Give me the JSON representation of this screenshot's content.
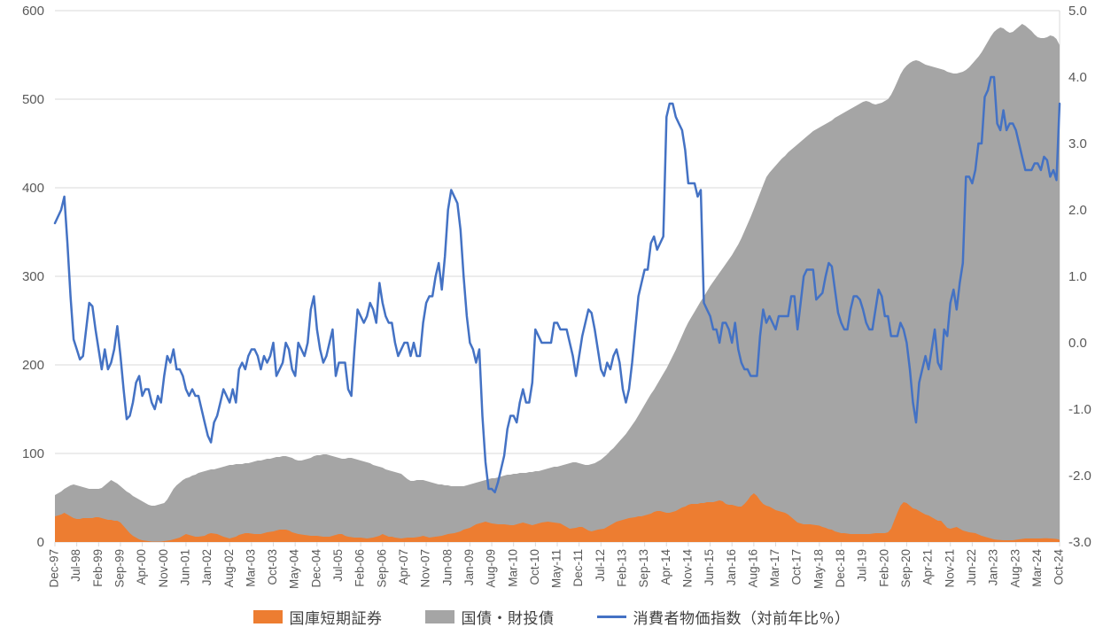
{
  "chart_data": {
    "type": "combo-area-line",
    "title": "",
    "x_tick_labels": [
      "Dec-97",
      "Jul-98",
      "Feb-99",
      "Sep-99",
      "Apr-00",
      "Nov-00",
      "Jun-01",
      "Jan-02",
      "Aug-02",
      "Mar-03",
      "Oct-03",
      "May-04",
      "Dec-04",
      "Jul-05",
      "Feb-06",
      "Sep-06",
      "Apr-07",
      "Nov-07",
      "Jun-08",
      "Jan-09",
      "Aug-09",
      "Mar-10",
      "Oct-10",
      "May-11",
      "Dec-11",
      "Jul-12",
      "Feb-13",
      "Sep-13",
      "Apr-14",
      "Nov-14",
      "Jun-15",
      "Jan-16",
      "Aug-16",
      "Mar-17",
      "Oct-17",
      "May-18",
      "Dec-18",
      "Jul-19",
      "Feb-20",
      "Sep-20",
      "Apr-21",
      "Nov-21",
      "Jun-22",
      "Jan-23",
      "Aug-23",
      "Mar-24",
      "Oct-24"
    ],
    "x_tick_interval_months": 7,
    "x_monthly_point_count": 323,
    "left_axis": {
      "min": 0,
      "max": 600,
      "ticks": [
        "0",
        "100",
        "200",
        "300",
        "400",
        "500",
        "600"
      ]
    },
    "right_axis": {
      "min": -3.0,
      "max": 5.0,
      "ticks": [
        "-3.0",
        "-2.0",
        "-1.0",
        "0.0",
        "1.0",
        "2.0",
        "3.0",
        "4.0",
        "5.0"
      ]
    },
    "grid": {
      "show": true,
      "color": "#d9d9d9",
      "axis_text_color": "#595959"
    },
    "legend_position": "bottom",
    "series": [
      {
        "name": "国債・財投債",
        "type": "area",
        "axis": "left",
        "color": "#a5a5a5",
        "values": [
          53,
          55,
          57,
          60,
          62,
          64,
          65,
          64,
          63,
          62,
          61,
          60,
          60,
          60,
          60,
          61,
          64,
          67,
          70,
          68,
          66,
          63,
          60,
          57,
          55,
          52,
          50,
          48,
          46,
          44,
          42,
          41,
          41,
          42,
          43,
          44,
          48,
          54,
          60,
          64,
          67,
          70,
          72,
          73,
          75,
          76,
          78,
          79,
          80,
          81,
          82,
          82,
          83,
          84,
          85,
          86,
          87,
          87,
          88,
          88,
          88,
          89,
          89,
          90,
          91,
          92,
          92,
          93,
          94,
          94,
          95,
          96,
          96,
          97,
          97,
          96,
          95,
          93,
          92,
          92,
          93,
          94,
          95,
          97,
          98,
          98,
          99,
          99,
          98,
          97,
          96,
          95,
          94,
          94,
          95,
          95,
          94,
          93,
          92,
          91,
          90,
          89,
          87,
          86,
          85,
          84,
          82,
          81,
          80,
          79,
          78,
          77,
          74,
          71,
          69,
          69,
          70,
          70,
          70,
          69,
          68,
          67,
          66,
          65,
          65,
          64,
          64,
          63,
          63,
          63,
          63,
          63,
          64,
          65,
          66,
          67,
          68,
          69,
          70,
          71,
          72,
          72,
          73,
          74,
          75,
          76,
          76,
          77,
          77,
          78,
          78,
          78,
          79,
          79,
          80,
          80,
          81,
          82,
          83,
          84,
          85,
          85,
          86,
          87,
          88,
          89,
          90,
          90,
          89,
          88,
          87,
          87,
          88,
          89,
          91,
          93,
          96,
          99,
          103,
          106,
          110,
          114,
          118,
          122,
          127,
          132,
          137,
          143,
          149,
          155,
          161,
          167,
          172,
          178,
          184,
          190,
          196,
          203,
          210,
          217,
          225,
          233,
          241,
          248,
          254,
          260,
          266,
          272,
          277,
          283,
          289,
          294,
          299,
          304,
          309,
          314,
          319,
          324,
          330,
          336,
          343,
          351,
          359,
          367,
          376,
          385,
          394,
          403,
          412,
          417,
          421,
          425,
          429,
          433,
          436,
          440,
          443,
          446,
          449,
          452,
          455,
          458,
          461,
          464,
          466,
          468,
          470,
          472,
          474,
          476,
          479,
          481,
          483,
          485,
          487,
          489,
          491,
          493,
          495,
          497,
          498,
          497,
          495,
          494,
          495,
          496,
          498,
          500,
          505,
          512,
          520,
          528,
          534,
          538,
          541,
          543,
          544,
          543,
          541,
          539,
          538,
          537,
          536,
          535,
          534,
          533,
          531,
          530,
          529,
          529,
          530,
          531,
          533,
          536,
          540,
          544,
          548,
          553,
          559,
          565,
          571,
          576,
          579,
          581,
          580,
          577,
          575,
          576,
          579,
          582,
          585,
          583,
          580,
          577,
          573,
          570,
          569,
          569,
          570,
          572,
          571,
          568,
          561
        ]
      },
      {
        "name": "国庫短期証券",
        "type": "area",
        "axis": "left",
        "color": "#ed7d31",
        "values": [
          29,
          30,
          31,
          33,
          31,
          29,
          27,
          26,
          26,
          27,
          27,
          27,
          27,
          28,
          28,
          27,
          26,
          25,
          25,
          24,
          24,
          22,
          18,
          14,
          10,
          7,
          5,
          3,
          2,
          1.5,
          1,
          0.5,
          0.5,
          0.5,
          0.5,
          1,
          1.5,
          2,
          3,
          4,
          5,
          7,
          9,
          8,
          7,
          6,
          6,
          6.5,
          7,
          9,
          10,
          9.5,
          9,
          7.5,
          6,
          5,
          4,
          5,
          6,
          8,
          9,
          10,
          10,
          9.5,
          9,
          9,
          9,
          10,
          11,
          11.5,
          12,
          13,
          14,
          14,
          14,
          13,
          11,
          10,
          9,
          8.5,
          8,
          7.5,
          7,
          7,
          7,
          6.5,
          6,
          6,
          6,
          7,
          8,
          9,
          9,
          7,
          6,
          5.5,
          5,
          5,
          5,
          4.5,
          4,
          4.5,
          5,
          6,
          7,
          9,
          7.5,
          6,
          6,
          5,
          4.5,
          4,
          4.5,
          5,
          5,
          5,
          5.5,
          6,
          7,
          6,
          5,
          5.5,
          6,
          6.5,
          7,
          8,
          9,
          9.5,
          10,
          11,
          12,
          14,
          15,
          16,
          18,
          20,
          21,
          22,
          23,
          22,
          21,
          20.5,
          20,
          20,
          20,
          19.5,
          19,
          19,
          20,
          21,
          22,
          21,
          20,
          19,
          20,
          21,
          22,
          22.5,
          23,
          22.5,
          22,
          21.5,
          21,
          19,
          17,
          15,
          15.5,
          16,
          17,
          17,
          15,
          13,
          12,
          13,
          14,
          14.5,
          15,
          17,
          19,
          21,
          23,
          24,
          25,
          26,
          27,
          27.5,
          28,
          29,
          29,
          30,
          31,
          32,
          34,
          35,
          35,
          34,
          33,
          33,
          34,
          35,
          37,
          39,
          40,
          42,
          43,
          43,
          43,
          44,
          44,
          45,
          45,
          45,
          46,
          47,
          46,
          43,
          42,
          42,
          41,
          40,
          40,
          43,
          47,
          52,
          55,
          52,
          47,
          43,
          41,
          40,
          38,
          36,
          35,
          34,
          33,
          31,
          28,
          25,
          22,
          21,
          20,
          20,
          20,
          19.5,
          19,
          18.5,
          17,
          16,
          14.5,
          14,
          12,
          11,
          10,
          10,
          9.5,
          9,
          9,
          9,
          9,
          9,
          9,
          9,
          9.5,
          10,
          10,
          10,
          10,
          11,
          15,
          24,
          33,
          41,
          45,
          44,
          41,
          38,
          37,
          35,
          33,
          31,
          30,
          28,
          26,
          24,
          24,
          20,
          16,
          15,
          16,
          17,
          15,
          13,
          12,
          11,
          10.5,
          10,
          8.5,
          7,
          6,
          5,
          4,
          3,
          2.5,
          2.2,
          2,
          2,
          2,
          2,
          2.5,
          3,
          3.5,
          4,
          4,
          4,
          4,
          4,
          4,
          4.2,
          4.2,
          4,
          3.8,
          3.5,
          2.5
        ]
      },
      {
        "name": "消費者物価指数（対前年比％）",
        "type": "line",
        "axis": "right",
        "color": "#4472c4",
        "values": [
          1.8,
          1.9,
          2.0,
          2.2,
          1.5,
          0.7,
          0.05,
          -0.1,
          -0.25,
          -0.2,
          0.2,
          0.6,
          0.55,
          0.2,
          -0.1,
          -0.4,
          -0.1,
          -0.4,
          -0.3,
          -0.1,
          0.25,
          -0.2,
          -0.7,
          -1.15,
          -1.1,
          -0.9,
          -0.6,
          -0.5,
          -0.8,
          -0.7,
          -0.7,
          -0.9,
          -1.0,
          -0.8,
          -0.9,
          -0.5,
          -0.2,
          -0.3,
          -0.1,
          -0.4,
          -0.4,
          -0.5,
          -0.7,
          -0.8,
          -0.7,
          -0.8,
          -0.8,
          -1.0,
          -1.2,
          -1.4,
          -1.5,
          -1.2,
          -1.1,
          -0.9,
          -0.7,
          -0.8,
          -0.9,
          -0.7,
          -0.9,
          -0.4,
          -0.3,
          -0.4,
          -0.2,
          -0.1,
          -0.1,
          -0.2,
          -0.4,
          -0.2,
          -0.3,
          -0.2,
          0.0,
          -0.5,
          -0.4,
          -0.3,
          0.0,
          -0.1,
          -0.4,
          -0.5,
          0.0,
          -0.1,
          -0.2,
          0.0,
          0.5,
          0.7,
          0.2,
          -0.1,
          -0.3,
          -0.2,
          0.0,
          0.2,
          -0.5,
          -0.3,
          -0.3,
          -0.3,
          -0.7,
          -0.8,
          -0.1,
          0.5,
          0.4,
          0.3,
          0.4,
          0.6,
          0.5,
          0.3,
          0.9,
          0.6,
          0.4,
          0.3,
          0.3,
          0.0,
          -0.2,
          -0.1,
          0.0,
          0.0,
          -0.2,
          0.0,
          -0.2,
          -0.2,
          0.3,
          0.6,
          0.7,
          0.7,
          1.0,
          1.2,
          0.8,
          1.3,
          2.0,
          2.3,
          2.2,
          2.1,
          1.7,
          1.0,
          0.4,
          0.0,
          -0.1,
          -0.3,
          -0.1,
          -1.1,
          -1.8,
          -2.2,
          -2.2,
          -2.25,
          -2.1,
          -1.9,
          -1.7,
          -1.3,
          -1.1,
          -1.1,
          -1.2,
          -0.9,
          -0.7,
          -0.9,
          -0.9,
          -0.6,
          0.2,
          0.1,
          0.0,
          0.0,
          0.0,
          0.0,
          0.3,
          0.3,
          0.2,
          0.2,
          0.2,
          0.0,
          -0.2,
          -0.5,
          -0.2,
          0.1,
          0.3,
          0.5,
          0.45,
          0.2,
          -0.1,
          -0.4,
          -0.5,
          -0.3,
          -0.4,
          -0.2,
          -0.1,
          -0.3,
          -0.7,
          -0.9,
          -0.7,
          -0.3,
          0.2,
          0.7,
          0.9,
          1.1,
          1.1,
          1.5,
          1.6,
          1.4,
          1.5,
          1.6,
          3.4,
          3.6,
          3.6,
          3.4,
          3.3,
          3.2,
          2.9,
          2.4,
          2.4,
          2.4,
          2.2,
          2.3,
          0.6,
          0.5,
          0.4,
          0.2,
          0.2,
          0.0,
          0.3,
          0.3,
          0.2,
          0.0,
          0.3,
          -0.1,
          -0.3,
          -0.4,
          -0.4,
          -0.5,
          -0.5,
          -0.5,
          0.1,
          0.5,
          0.3,
          0.4,
          0.3,
          0.2,
          0.4,
          0.4,
          0.4,
          0.4,
          0.7,
          0.7,
          0.2,
          0.6,
          1.0,
          1.1,
          1.1,
          1.1,
          0.65,
          0.7,
          0.75,
          1.0,
          1.2,
          1.15,
          0.8,
          0.45,
          0.3,
          0.2,
          0.2,
          0.5,
          0.7,
          0.7,
          0.65,
          0.5,
          0.3,
          0.2,
          0.2,
          0.5,
          0.8,
          0.7,
          0.4,
          0.4,
          0.1,
          0.1,
          0.1,
          0.3,
          0.2,
          0.0,
          -0.4,
          -0.9,
          -1.2,
          -0.6,
          -0.4,
          -0.2,
          -0.4,
          -0.1,
          0.2,
          -0.3,
          -0.4,
          0.2,
          0.1,
          0.6,
          0.8,
          0.5,
          0.9,
          1.2,
          2.5,
          2.5,
          2.4,
          2.6,
          3.0,
          3.0,
          3.7,
          3.8,
          4.0,
          4.0,
          3.3,
          3.2,
          3.5,
          3.2,
          3.3,
          3.3,
          3.2,
          3.0,
          2.8,
          2.6,
          2.6,
          2.6,
          2.7,
          2.7,
          2.6,
          2.8,
          2.75,
          2.5,
          2.6,
          2.45,
          3.6
        ]
      }
    ]
  },
  "legend": {
    "items": [
      {
        "label": "国庫短期証券",
        "swatch": "orange-area-swatch"
      },
      {
        "label": "国債・財投債",
        "swatch": "gray-area-swatch"
      },
      {
        "label": "消費者物価指数（対前年比％）",
        "swatch": "blue-line-swatch"
      }
    ]
  }
}
